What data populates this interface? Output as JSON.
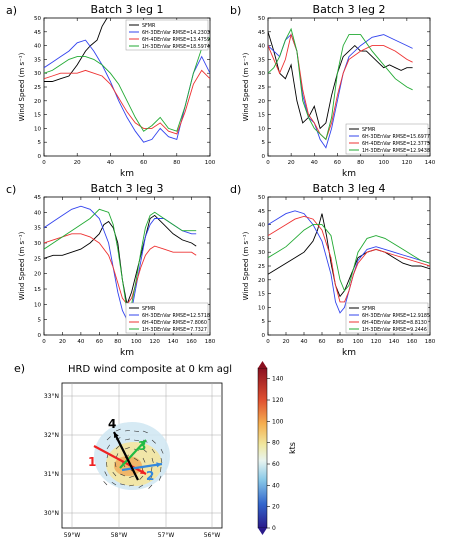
{
  "colors": {
    "SFMR": "#000000",
    "6H-3DEnVar": "#3344ee",
    "6H-4DEnVar": "#ee3333",
    "1H-3DEnVar": "#22aa33",
    "axis": "#000000"
  },
  "chart_data": [
    {
      "panel": "a)",
      "type": "line",
      "title": "Batch 3 leg 1",
      "xlabel": "km",
      "ylabel": "Wind Speed (m s⁻¹)",
      "xlim": [
        0,
        100
      ],
      "ylim": [
        0,
        50
      ],
      "xticks": [
        0,
        20,
        40,
        60,
        80,
        100
      ],
      "yticks": [
        0,
        5,
        10,
        15,
        20,
        25,
        30,
        35,
        40,
        45,
        50
      ],
      "legend_position": "top-right",
      "series": [
        {
          "name": "SFMR",
          "x": [
            0,
            5,
            10,
            15,
            20,
            25,
            28,
            32,
            35,
            38,
            40
          ],
          "y": [
            27,
            27,
            28,
            29,
            33,
            38,
            40,
            42,
            47,
            50,
            51
          ]
        },
        {
          "name": "6H-3DEnVar RMSE=14.2303",
          "x": [
            0,
            5,
            10,
            15,
            20,
            25,
            30,
            35,
            40,
            45,
            50,
            55,
            60,
            65,
            70,
            75,
            80,
            85,
            90,
            95,
            100
          ],
          "y": [
            32,
            34,
            36,
            38,
            41,
            42,
            38,
            33,
            27,
            20,
            14,
            9,
            5,
            6,
            10,
            7,
            6,
            18,
            30,
            36,
            30
          ]
        },
        {
          "name": "6H-4DEnVar RMSE=13.4759",
          "x": [
            0,
            5,
            10,
            15,
            20,
            25,
            30,
            35,
            40,
            45,
            50,
            55,
            60,
            65,
            70,
            75,
            80,
            85,
            90,
            95,
            100
          ],
          "y": [
            28,
            29,
            30,
            30,
            30,
            31,
            30,
            29,
            26,
            21,
            16,
            12,
            10,
            10,
            12,
            9,
            8,
            16,
            26,
            31,
            28
          ]
        },
        {
          "name": "1H-3DEnVar RMSE=18.5974",
          "x": [
            0,
            5,
            10,
            15,
            20,
            25,
            30,
            35,
            40,
            45,
            50,
            55,
            60,
            65,
            70,
            75,
            80,
            85,
            90,
            95,
            100
          ],
          "y": [
            30,
            31,
            33,
            35,
            36,
            36,
            35,
            33,
            30,
            26,
            20,
            14,
            9,
            11,
            14,
            10,
            9,
            18,
            30,
            39,
            43
          ]
        }
      ]
    },
    {
      "panel": "b)",
      "type": "line",
      "title": "Batch 3 leg 2",
      "xlabel": "km",
      "ylabel": "Wind Speed (m s⁻¹)",
      "xlim": [
        0,
        140
      ],
      "ylim": [
        0,
        50
      ],
      "xticks": [
        0,
        20,
        40,
        60,
        80,
        100,
        120,
        140
      ],
      "yticks": [
        0,
        5,
        10,
        15,
        20,
        25,
        30,
        35,
        40,
        45,
        50
      ],
      "legend_position": "bottom-right",
      "series": [
        {
          "name": "SFMR",
          "x": [
            0,
            5,
            10,
            15,
            20,
            25,
            30,
            35,
            40,
            45,
            50,
            55,
            60,
            65,
            70,
            75,
            80,
            85,
            90,
            95,
            100,
            105,
            110,
            115,
            120,
            125
          ],
          "y": [
            45,
            38,
            30,
            28,
            33,
            20,
            12,
            14,
            18,
            10,
            12,
            22,
            30,
            36,
            38,
            40,
            38,
            38,
            36,
            34,
            32,
            33,
            32,
            31,
            32,
            32
          ]
        },
        {
          "name": "6H-3DEnVar RMSE=15.6977",
          "x": [
            0,
            5,
            10,
            15,
            20,
            25,
            30,
            35,
            40,
            45,
            50,
            55,
            60,
            65,
            70,
            80,
            90,
            100,
            110,
            120,
            125
          ],
          "y": [
            40,
            38,
            36,
            42,
            44,
            38,
            22,
            14,
            12,
            6,
            3,
            10,
            20,
            30,
            36,
            40,
            43,
            44,
            42,
            40,
            39
          ]
        },
        {
          "name": "6H-4DEnVar RMSE=12.3775",
          "x": [
            0,
            5,
            10,
            15,
            20,
            25,
            30,
            35,
            40,
            45,
            50,
            55,
            60,
            65,
            70,
            80,
            90,
            100,
            110,
            120,
            125
          ],
          "y": [
            40,
            35,
            30,
            35,
            44,
            38,
            24,
            15,
            12,
            8,
            6,
            12,
            22,
            30,
            35,
            38,
            40,
            40,
            38,
            35,
            34
          ]
        },
        {
          "name": "1H-3DEnVar RMSE=12.9438",
          "x": [
            0,
            5,
            10,
            15,
            20,
            25,
            30,
            35,
            40,
            45,
            50,
            55,
            60,
            65,
            70,
            80,
            90,
            100,
            110,
            120,
            125
          ],
          "y": [
            30,
            32,
            36,
            42,
            46,
            38,
            20,
            14,
            10,
            8,
            6,
            14,
            30,
            40,
            44,
            44,
            38,
            33,
            28,
            25,
            24
          ]
        }
      ]
    },
    {
      "panel": "c)",
      "type": "line",
      "title": "Batch 3 leg 3",
      "xlabel": "km",
      "ylabel": "Wind Speed (m s⁻¹)",
      "xlim": [
        0,
        180
      ],
      "ylim": [
        0,
        45
      ],
      "xticks": [
        0,
        20,
        40,
        60,
        80,
        100,
        120,
        140,
        160,
        180
      ],
      "yticks": [
        0,
        5,
        10,
        15,
        20,
        25,
        30,
        35,
        40,
        45
      ],
      "legend_position": "bottom-right",
      "series": [
        {
          "name": "SFMR",
          "x": [
            0,
            10,
            20,
            30,
            40,
            50,
            60,
            65,
            70,
            75,
            80,
            85,
            90,
            95,
            100,
            105,
            110,
            115,
            120,
            130,
            140,
            150,
            160,
            165
          ],
          "y": [
            25,
            26,
            26,
            27,
            28,
            30,
            33,
            36,
            37,
            35,
            30,
            18,
            10,
            14,
            20,
            26,
            32,
            38,
            39,
            36,
            33,
            31,
            30,
            29
          ]
        },
        {
          "name": "6H-3DEnVar RMSE=12.5718",
          "x": [
            0,
            10,
            20,
            30,
            40,
            50,
            60,
            70,
            75,
            80,
            85,
            90,
            95,
            100,
            105,
            110,
            115,
            120,
            130,
            140,
            150,
            160,
            165
          ],
          "y": [
            35,
            37,
            39,
            41,
            42,
            41,
            38,
            30,
            22,
            14,
            8,
            5,
            8,
            16,
            24,
            32,
            36,
            38,
            38,
            36,
            34,
            33,
            33
          ]
        },
        {
          "name": "6H-4DEnVar RMSE=7.8060",
          "x": [
            0,
            10,
            20,
            30,
            40,
            50,
            60,
            70,
            75,
            80,
            85,
            90,
            95,
            100,
            105,
            110,
            115,
            120,
            130,
            140,
            150,
            160,
            165
          ],
          "y": [
            30,
            31,
            32,
            33,
            33,
            32,
            30,
            26,
            22,
            17,
            12,
            10,
            12,
            17,
            22,
            26,
            28,
            29,
            28,
            27,
            27,
            27,
            26
          ]
        },
        {
          "name": "1H-3DEnVar RMSE=7.7327",
          "x": [
            0,
            10,
            20,
            30,
            40,
            50,
            60,
            70,
            75,
            80,
            85,
            90,
            95,
            100,
            105,
            110,
            115,
            120,
            130,
            140,
            150,
            160,
            165
          ],
          "y": [
            28,
            30,
            32,
            34,
            36,
            38,
            41,
            40,
            36,
            28,
            18,
            8,
            10,
            18,
            27,
            35,
            39,
            40,
            38,
            36,
            34,
            34,
            34
          ]
        }
      ]
    },
    {
      "panel": "d)",
      "type": "line",
      "title": "Batch 3 leg 4",
      "xlabel": "km",
      "ylabel": "Wind Speed (m s⁻¹)",
      "xlim": [
        0,
        180
      ],
      "ylim": [
        0,
        50
      ],
      "xticks": [
        0,
        20,
        40,
        60,
        80,
        100,
        120,
        140,
        160,
        180
      ],
      "yticks": [
        0,
        5,
        10,
        15,
        20,
        25,
        30,
        35,
        40,
        45,
        50
      ],
      "legend_position": "bottom-right",
      "series": [
        {
          "name": "SFMR",
          "x": [
            0,
            10,
            20,
            30,
            40,
            45,
            50,
            55,
            60,
            65,
            70,
            75,
            80,
            85,
            90,
            95,
            100,
            110,
            120,
            130,
            140,
            150,
            160,
            170,
            180
          ],
          "y": [
            22,
            24,
            26,
            28,
            30,
            32,
            34,
            38,
            44,
            36,
            26,
            18,
            14,
            16,
            20,
            24,
            28,
            30,
            31,
            30,
            28,
            26,
            25,
            25,
            24
          ]
        },
        {
          "name": "6H-3DEnVar RMSE=12.9185",
          "x": [
            0,
            10,
            20,
            30,
            40,
            50,
            60,
            70,
            75,
            80,
            85,
            90,
            95,
            100,
            110,
            120,
            130,
            140,
            150,
            160,
            170,
            180
          ],
          "y": [
            40,
            42,
            44,
            45,
            44,
            40,
            34,
            22,
            12,
            8,
            10,
            16,
            22,
            27,
            31,
            32,
            31,
            30,
            29,
            28,
            27,
            26
          ]
        },
        {
          "name": "6H-4DEnVar RMSE=8.8130",
          "x": [
            0,
            10,
            20,
            30,
            40,
            50,
            60,
            70,
            75,
            80,
            85,
            90,
            95,
            100,
            110,
            120,
            130,
            140,
            150,
            160,
            170,
            180
          ],
          "y": [
            36,
            38,
            40,
            42,
            43,
            42,
            38,
            28,
            18,
            12,
            12,
            16,
            22,
            26,
            30,
            31,
            30,
            29,
            28,
            27,
            26,
            25
          ]
        },
        {
          "name": "1H-3DEnVar RMSE=9.2446",
          "x": [
            0,
            10,
            20,
            30,
            40,
            50,
            60,
            70,
            75,
            80,
            85,
            90,
            95,
            100,
            110,
            120,
            130,
            140,
            150,
            160,
            170,
            180
          ],
          "y": [
            28,
            30,
            32,
            35,
            38,
            40,
            40,
            36,
            28,
            20,
            16,
            18,
            24,
            30,
            35,
            36,
            35,
            33,
            31,
            29,
            27,
            26
          ]
        }
      ]
    },
    {
      "panel": "e)",
      "type": "map",
      "title": "HRD wind composite at 0 km agl",
      "xticks": [
        "59°W",
        "58°W",
        "57°W",
        "56°W"
      ],
      "yticks": [
        "33°N",
        "32°N",
        "31°N",
        "30°N"
      ],
      "colorbar": {
        "label": "kts",
        "ticks": [
          0,
          20,
          40,
          60,
          80,
          100,
          120,
          140
        ],
        "range": [
          0,
          150
        ]
      },
      "legs": [
        {
          "label": "1",
          "color": "#ee2222"
        },
        {
          "label": "2",
          "color": "#3388dd"
        },
        {
          "label": "3",
          "color": "#22bb44"
        },
        {
          "label": "4",
          "color": "#000000"
        }
      ]
    }
  ]
}
